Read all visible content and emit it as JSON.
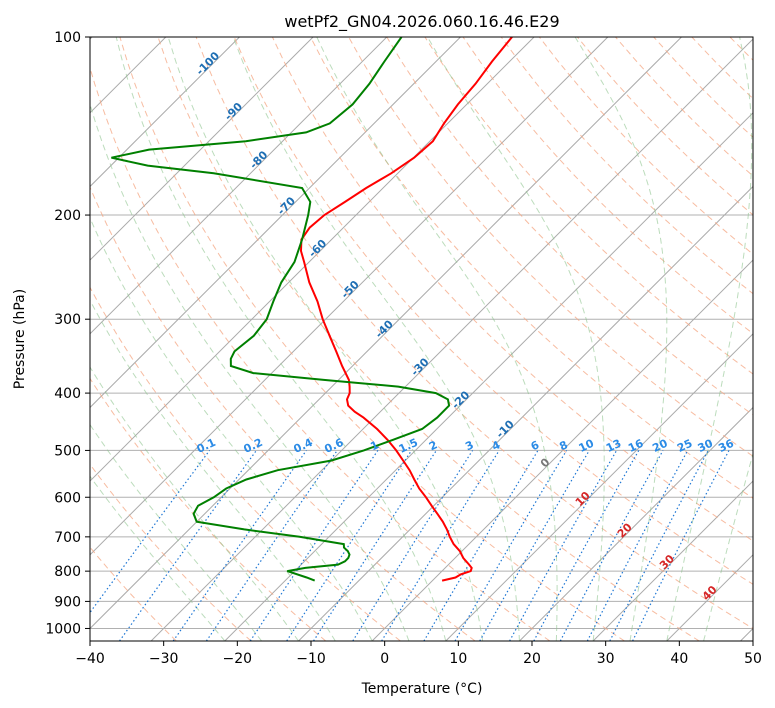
{
  "chart_data": {
    "type": "line",
    "subtype": "skew-t log-p diagram",
    "title": "wetPf2_GN04.2026.060.16.46.E29",
    "xlabel": "Temperature (°C)",
    "ylabel": "Pressure (hPa)",
    "xlim": [
      -40,
      50
    ],
    "ylim": [
      1050,
      100
    ],
    "y_scale": "log",
    "grid": true,
    "x_ticks": [
      -40,
      -30,
      -20,
      -10,
      0,
      10,
      20,
      30,
      40,
      50
    ],
    "x_tick_labels": [
      "−40",
      "−30",
      "−20",
      "−10",
      "0",
      "10",
      "20",
      "30",
      "40",
      "50"
    ],
    "y_ticks": [
      100,
      200,
      300,
      400,
      500,
      600,
      700,
      800,
      900,
      1000
    ],
    "y_tick_labels": [
      "100",
      "200",
      "300",
      "400",
      "500",
      "600",
      "700",
      "800",
      "900",
      "1000"
    ],
    "isotherm_labels": [
      {
        "text": "-100",
        "t": -100,
        "p": 112
      },
      {
        "text": "-90",
        "t": -90,
        "p": 135
      },
      {
        "text": "-80",
        "t": -80,
        "p": 163
      },
      {
        "text": "-70",
        "t": -70,
        "p": 195
      },
      {
        "text": "-60",
        "t": -60,
        "p": 230
      },
      {
        "text": "-50",
        "t": -50,
        "p": 270
      },
      {
        "text": "-40",
        "t": -40,
        "p": 315
      },
      {
        "text": "-30",
        "t": -30,
        "p": 365
      },
      {
        "text": "-20",
        "t": -20,
        "p": 415
      },
      {
        "text": "-10",
        "t": -10,
        "p": 465
      },
      {
        "text": "0",
        "t": 0,
        "p": 530
      },
      {
        "text": "10",
        "t": 10,
        "p": 610
      },
      {
        "text": "20",
        "t": 20,
        "p": 690
      },
      {
        "text": "30",
        "t": 30,
        "p": 780
      },
      {
        "text": "40",
        "t": 40,
        "p": 880
      }
    ],
    "mixing_ratio_labels": [
      "0.1",
      "0.2",
      "0.4",
      "0.6",
      "1",
      "1.5",
      "2",
      "3",
      "4",
      "6",
      "8",
      "10",
      "13",
      "16",
      "20",
      "25",
      "30",
      "36"
    ],
    "mixing_ratios": [
      0.1,
      0.2,
      0.4,
      0.6,
      1,
      1.5,
      2,
      3,
      4,
      6,
      8,
      10,
      13,
      16,
      20,
      25,
      30,
      36
    ],
    "series": [
      {
        "color": "#ff0000",
        "pressure": [
          830,
          820,
          810,
          800,
          790,
          780,
          760,
          740,
          720,
          700,
          680,
          660,
          640,
          620,
          600,
          580,
          560,
          540,
          520,
          500,
          480,
          460,
          440,
          430,
          420,
          410,
          400,
          390,
          380,
          360,
          340,
          320,
          300,
          280,
          260,
          240,
          230,
          220,
          210,
          200,
          190,
          180,
          170,
          160,
          150,
          140,
          130,
          120,
          110,
          100
        ],
        "temperature": [
          1.3,
          2.7,
          3.0,
          3.9,
          3.6,
          2.8,
          1.1,
          -0.3,
          -2.1,
          -3.6,
          -5.0,
          -6.6,
          -8.4,
          -10.3,
          -12.2,
          -14.3,
          -16.2,
          -18.1,
          -20.3,
          -22.6,
          -25.2,
          -28.1,
          -31.5,
          -33.5,
          -35.2,
          -36.2,
          -36.7,
          -37.6,
          -38.6,
          -41.4,
          -44.2,
          -47.2,
          -50.4,
          -53.5,
          -57.2,
          -60.7,
          -62.6,
          -64.1,
          -64.6,
          -64.3,
          -63.3,
          -62.3,
          -60.9,
          -59.9,
          -59.6,
          -60.5,
          -61.2,
          -61.6,
          -62.4,
          -63.0
        ]
      },
      {
        "color": "#008000",
        "pressure": [
          830,
          820,
          800,
          790,
          780,
          770,
          760,
          750,
          740,
          730,
          720,
          700,
          680,
          660,
          640,
          620,
          600,
          580,
          560,
          540,
          520,
          500,
          480,
          460,
          440,
          420,
          410,
          400,
          390,
          380,
          370,
          360,
          350,
          340,
          320,
          300,
          280,
          260,
          240,
          220,
          200,
          190,
          180,
          170,
          165,
          160,
          155,
          150,
          145,
          140,
          130,
          120,
          110,
          100
        ],
        "temperature": [
          -16.0,
          -17.5,
          -21.0,
          -19.0,
          -15.0,
          -14.5,
          -14.5,
          -14.8,
          -15.5,
          -16.5,
          -17.0,
          -24.0,
          -32.5,
          -40.0,
          -41.5,
          -42.0,
          -41.0,
          -40.5,
          -39.0,
          -36.0,
          -30.0,
          -27.0,
          -24.5,
          -22.0,
          -21.5,
          -21.5,
          -22.5,
          -25.0,
          -31.0,
          -42.0,
          -52.5,
          -56.5,
          -57.5,
          -58.0,
          -57.5,
          -58.0,
          -59.5,
          -61.0,
          -62.0,
          -64.0,
          -66.5,
          -68.0,
          -71.0,
          -85.0,
          -95.0,
          -101.0,
          -97.0,
          -85.0,
          -78.0,
          -76.0,
          -75.5,
          -76.0,
          -77.0,
          -78.0
        ]
      }
    ]
  }
}
